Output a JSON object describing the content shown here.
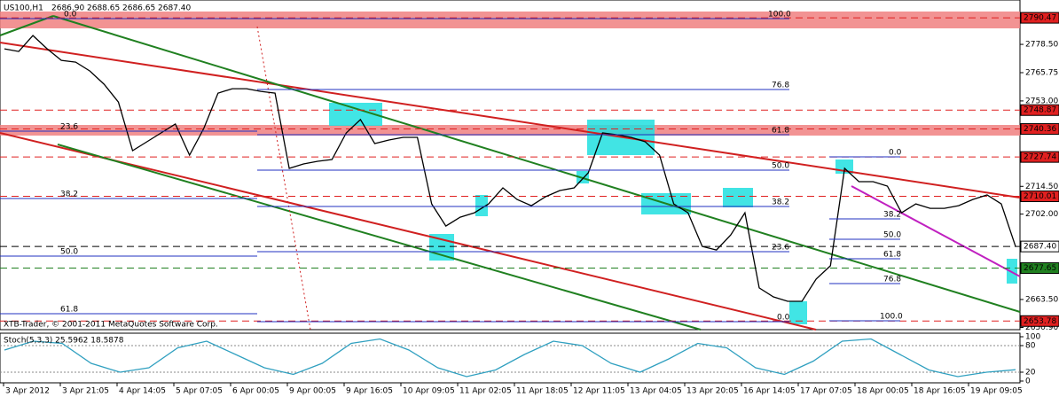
{
  "chart_data": [
    {
      "type": "line",
      "title": "US100,H1",
      "ohlc": [
        "2686.90",
        "2688.65",
        "2686.65",
        "2687.40"
      ],
      "copyright": "XTB-Trader, © 2001-2011 MetaQuotes Software Corp.",
      "x_labels": [
        "3 Apr 2012",
        "3 Apr 21:05",
        "4 Apr 14:05",
        "5 Apr 07:05",
        "6 Apr 00:05",
        "9 Apr 00:05",
        "9 Apr 16:05",
        "10 Apr 09:05",
        "11 Apr 02:05",
        "11 Apr 18:05",
        "12 Apr 11:05",
        "13 Apr 04:05",
        "13 Apr 20:05",
        "16 Apr 14:05",
        "17 Apr 07:05",
        "18 Apr 00:05",
        "18 Apr 16:05",
        "19 Apr 09:05"
      ],
      "values": [
        2776.5,
        2775.3,
        2782.5,
        2776.5,
        2771.3,
        2770.5,
        2766.5,
        2760.5,
        2752.5,
        2730.6,
        2734.6,
        2738.6,
        2742.6,
        2728.6,
        2740.6,
        2756.5,
        2758.5,
        2758.5,
        2757.3,
        2756.5,
        2722.6,
        2724.6,
        2725.8,
        2726.6,
        2738.6,
        2744.6,
        2733.8,
        2735.4,
        2736.6,
        2736.6,
        2706.6,
        2696.6,
        2700.6,
        2702.6,
        2706.6,
        2713.8,
        2708.6,
        2705.8,
        2709.8,
        2712.6,
        2713.8,
        2720.6,
        2738.6,
        2737.8,
        2736.6,
        2734.6,
        2728.6,
        2706.6,
        2702.6,
        2687.4,
        2685.8,
        2692.6,
        2702.6,
        2668.7,
        2664.7,
        2662.7,
        2662.7,
        2672.7,
        2678.7,
        2722.6,
        2716.6,
        2716.6,
        2714.6,
        2702.6,
        2706.6,
        2704.6,
        2704.6,
        2705.8,
        2708.6,
        2710.6,
        2706.6,
        2687.4
      ],
      "color": "#000000",
      "ylim": [
        2649.9,
        2798.5
      ],
      "yticks": [
        {
          "value": 2778.5,
          "label": "2778.50"
        },
        2765.75,
        {
          "value": 2753,
          "label": "2753.00"
        },
        {
          "value": 2714.5,
          "label": "2714.50"
        },
        {
          "value": 2702,
          "label": "2702.00"
        },
        {
          "value": 2663.5,
          "label": "2663.50"
        },
        {
          "value": 2650.9,
          "label": "2650.90"
        }
      ],
      "levels": [
        {
          "value": 2790.47,
          "color": "#e02020"
        },
        {
          "value": 2748.87,
          "color": "#e02020"
        },
        {
          "value": 2740.36,
          "color": "#e02020"
        },
        {
          "value": 2727.74,
          "color": "#e02020"
        },
        {
          "value": 2710.01,
          "color": "#e02020"
        },
        {
          "value": 2687.4,
          "label": "2687.40",
          "color": "#000000"
        },
        {
          "value": 2677.65,
          "color": "#208020"
        },
        {
          "value": 2653.78,
          "color": "#e02020"
        }
      ],
      "annotations": [
        "0.0",
        "23.6",
        "38.2",
        "50.0",
        "61.8",
        "100.0",
        "76.8",
        "61.8",
        "50.0",
        "38.2",
        "23.6",
        "0.0",
        "0.0",
        "38.2",
        "50.0",
        "61.8",
        "76.8",
        "100.0"
      ]
    },
    {
      "type": "line",
      "title": "Stoch(5,3,3) 25.5962 18.5878",
      "values": [
        70,
        90,
        85,
        40,
        20,
        30,
        75,
        90,
        60,
        30,
        15,
        40,
        85,
        95,
        70,
        30,
        10,
        25,
        60,
        90,
        80,
        40,
        20,
        50,
        85,
        75,
        30,
        15,
        45,
        90,
        95,
        60,
        25,
        10,
        20,
        25.6
      ],
      "color": "#30a0c0",
      "ylim": [
        0,
        100
      ],
      "yticks": [
        0,
        20,
        80,
        100
      ]
    }
  ]
}
